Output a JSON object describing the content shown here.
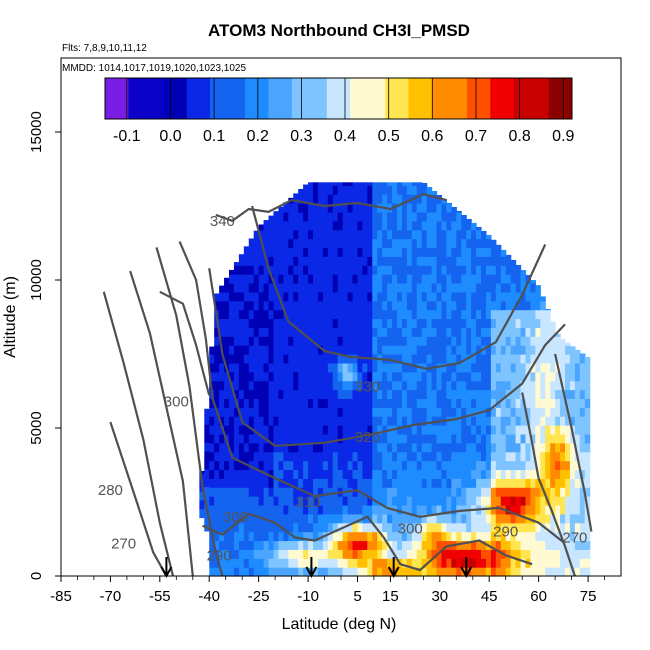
{
  "chart_data": {
    "type": "heatmap",
    "title": "ATOM3 Northbound CH3I_PMSD",
    "flights_label": "Flts: 7,8,9,10,11,12",
    "dates_label": "MMDD: 1014,1017,1019,1020,1023,1025",
    "xlabel": "Latitude (deg N)",
    "ylabel": "Altitude (m)",
    "xlim": [
      -85,
      85
    ],
    "ylim": [
      0,
      17500
    ],
    "x_ticks": [
      -85,
      -70,
      -55,
      -40,
      -25,
      -10,
      5,
      15,
      30,
      45,
      60,
      75
    ],
    "y_ticks": [
      0,
      5000,
      10000,
      15000
    ],
    "colorbar": {
      "ticks": [
        "-0.1",
        "0.0",
        "0.1",
        "0.2",
        "0.3",
        "0.4",
        "0.5",
        "0.6",
        "0.7",
        "0.8",
        "0.9"
      ],
      "range": [
        -0.15,
        0.92
      ],
      "colors": [
        "#7a1ee6",
        "#0a00c8",
        "#0000b4",
        "#0a28e6",
        "#1464f0",
        "#1e8cff",
        "#4ba5ff",
        "#7ec4ff",
        "#c8e6ff",
        "#fffad2",
        "#ffe650",
        "#ffc000",
        "#ff8c00",
        "#ff5000",
        "#f00000",
        "#c80000",
        "#8c0000"
      ]
    },
    "contours": [
      {
        "label": "270",
        "lat": -66,
        "alt": 1100
      },
      {
        "label": "280",
        "lat": -70,
        "alt": 2900
      },
      {
        "label": "290",
        "lat": -37,
        "alt": 700
      },
      {
        "label": "290",
        "lat": 50,
        "alt": 1500
      },
      {
        "label": "270",
        "lat": 71,
        "alt": 1300
      },
      {
        "label": "300",
        "lat": -50,
        "alt": 5900
      },
      {
        "label": "300",
        "lat": -32,
        "alt": 2000
      },
      {
        "label": "300",
        "lat": 21,
        "alt": 1600
      },
      {
        "label": "310",
        "lat": -10,
        "alt": 2500
      },
      {
        "label": "320",
        "lat": 8,
        "alt": 4700
      },
      {
        "label": "330",
        "lat": 8,
        "alt": 6400
      },
      {
        "label": "340",
        "lat": -36,
        "alt": 12000
      }
    ],
    "markers_lat": [
      -53,
      -9,
      16,
      38
    ],
    "grid": false,
    "legend": "colorbar top"
  }
}
